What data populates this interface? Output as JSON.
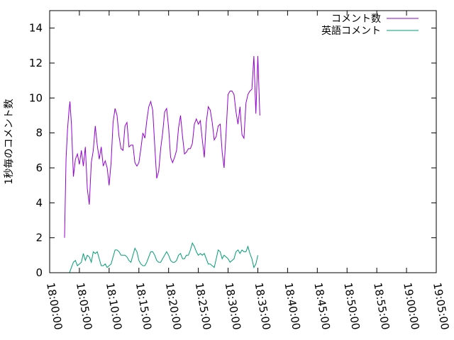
{
  "chart_data": {
    "type": "line",
    "ylabel": "1秒毎のコメント数",
    "xlabel": "",
    "ylim": [
      0,
      15
    ],
    "xlim": [
      "18:00:00",
      "19:05:00"
    ],
    "grid": false,
    "legend_position": "top-right",
    "y_ticks": [
      "0",
      "2",
      "4",
      "6",
      "8",
      "10",
      "12",
      "14"
    ],
    "x_ticks": [
      "18:00:00",
      "18:05:00",
      "18:10:00",
      "18:15:00",
      "18:20:00",
      "18:25:00",
      "18:30:00",
      "18:35:00",
      "18:40:00",
      "18:45:00",
      "18:50:00",
      "18:55:00",
      "19:00:00",
      "19:05:00"
    ],
    "series": [
      {
        "name": "コメント数",
        "color": "#9400d3",
        "points": [
          [
            "18:02:30",
            2.0
          ],
          [
            "18:02:45",
            6.5
          ],
          [
            "18:03:00",
            8.2
          ],
          [
            "18:03:15",
            9.3
          ],
          [
            "18:03:25",
            9.8
          ],
          [
            "18:03:40",
            8.5
          ],
          [
            "18:04:00",
            5.5
          ],
          [
            "18:04:20",
            6.5
          ],
          [
            "18:04:40",
            6.8
          ],
          [
            "18:05:00",
            6.2
          ],
          [
            "18:05:20",
            7.0
          ],
          [
            "18:05:40",
            6.1
          ],
          [
            "18:06:00",
            7.2
          ],
          [
            "18:06:20",
            4.8
          ],
          [
            "18:06:40",
            3.9
          ],
          [
            "18:07:00",
            6.3
          ],
          [
            "18:07:20",
            7.0
          ],
          [
            "18:07:40",
            8.4
          ],
          [
            "18:08:00",
            7.3
          ],
          [
            "18:08:20",
            6.5
          ],
          [
            "18:08:40",
            7.2
          ],
          [
            "18:09:00",
            6.1
          ],
          [
            "18:09:20",
            6.4
          ],
          [
            "18:09:40",
            6.0
          ],
          [
            "18:10:00",
            5.0
          ],
          [
            "18:10:20",
            6.3
          ],
          [
            "18:10:40",
            8.6
          ],
          [
            "18:11:00",
            9.4
          ],
          [
            "18:11:20",
            9.0
          ],
          [
            "18:11:40",
            7.8
          ],
          [
            "18:12:00",
            7.1
          ],
          [
            "18:12:20",
            7.0
          ],
          [
            "18:12:40",
            8.4
          ],
          [
            "18:13:00",
            8.6
          ],
          [
            "18:13:20",
            7.2
          ],
          [
            "18:13:40",
            7.3
          ],
          [
            "18:14:00",
            7.3
          ],
          [
            "18:14:20",
            6.3
          ],
          [
            "18:14:40",
            6.1
          ],
          [
            "18:15:00",
            6.3
          ],
          [
            "18:15:20",
            7.1
          ],
          [
            "18:15:40",
            8.0
          ],
          [
            "18:16:00",
            7.7
          ],
          [
            "18:16:20",
            8.7
          ],
          [
            "18:16:40",
            9.5
          ],
          [
            "18:17:00",
            9.8
          ],
          [
            "18:17:20",
            9.3
          ],
          [
            "18:17:40",
            7.3
          ],
          [
            "18:18:00",
            5.4
          ],
          [
            "18:18:20",
            5.8
          ],
          [
            "18:18:40",
            7.1
          ],
          [
            "18:19:00",
            8.0
          ],
          [
            "18:19:20",
            9.2
          ],
          [
            "18:19:40",
            9.4
          ],
          [
            "18:20:00",
            8.3
          ],
          [
            "18:20:20",
            6.6
          ],
          [
            "18:20:40",
            6.3
          ],
          [
            "18:21:00",
            6.6
          ],
          [
            "18:21:20",
            7.0
          ],
          [
            "18:21:40",
            8.3
          ],
          [
            "18:22:00",
            9.0
          ],
          [
            "18:22:20",
            7.8
          ],
          [
            "18:22:40",
            6.8
          ],
          [
            "18:23:00",
            6.9
          ],
          [
            "18:23:20",
            7.1
          ],
          [
            "18:23:40",
            7.1
          ],
          [
            "18:24:00",
            7.4
          ],
          [
            "18:24:20",
            8.5
          ],
          [
            "18:24:40",
            8.8
          ],
          [
            "18:25:00",
            8.5
          ],
          [
            "18:25:20",
            8.7
          ],
          [
            "18:25:40",
            7.6
          ],
          [
            "18:26:00",
            6.6
          ],
          [
            "18:26:20",
            8.6
          ],
          [
            "18:26:40",
            9.5
          ],
          [
            "18:27:00",
            9.3
          ],
          [
            "18:27:20",
            8.6
          ],
          [
            "18:27:40",
            7.6
          ],
          [
            "18:28:00",
            7.8
          ],
          [
            "18:28:20",
            8.4
          ],
          [
            "18:28:40",
            8.5
          ],
          [
            "18:29:00",
            6.9
          ],
          [
            "18:29:20",
            6.0
          ],
          [
            "18:29:40",
            8.0
          ],
          [
            "18:30:00",
            10.2
          ],
          [
            "18:30:20",
            10.4
          ],
          [
            "18:30:40",
            10.4
          ],
          [
            "18:31:00",
            10.2
          ],
          [
            "18:31:20",
            9.2
          ],
          [
            "18:31:40",
            8.5
          ],
          [
            "18:32:00",
            9.5
          ],
          [
            "18:32:20",
            7.9
          ],
          [
            "18:32:40",
            7.7
          ],
          [
            "18:33:00",
            9.7
          ],
          [
            "18:33:20",
            10.2
          ],
          [
            "18:33:40",
            10.4
          ],
          [
            "18:34:00",
            10.5
          ],
          [
            "18:34:20",
            12.4
          ],
          [
            "18:34:40",
            9.1
          ],
          [
            "18:35:00",
            12.4
          ],
          [
            "18:35:20",
            9.0
          ]
        ]
      },
      {
        "name": "英語コメント",
        "color": "#009e73",
        "points": [
          [
            "18:03:00",
            0.0
          ],
          [
            "18:03:20",
            0.0
          ],
          [
            "18:03:40",
            0.3
          ],
          [
            "18:04:00",
            0.6
          ],
          [
            "18:04:20",
            0.7
          ],
          [
            "18:04:40",
            0.4
          ],
          [
            "18:05:00",
            0.5
          ],
          [
            "18:05:20",
            0.6
          ],
          [
            "18:05:40",
            1.1
          ],
          [
            "18:06:00",
            0.7
          ],
          [
            "18:06:20",
            1.0
          ],
          [
            "18:06:40",
            0.9
          ],
          [
            "18:07:00",
            0.6
          ],
          [
            "18:07:20",
            1.2
          ],
          [
            "18:07:40",
            1.1
          ],
          [
            "18:08:00",
            1.2
          ],
          [
            "18:08:20",
            0.8
          ],
          [
            "18:08:40",
            0.4
          ],
          [
            "18:09:00",
            0.4
          ],
          [
            "18:09:20",
            0.5
          ],
          [
            "18:09:40",
            0.3
          ],
          [
            "18:10:00",
            0.4
          ],
          [
            "18:10:20",
            0.5
          ],
          [
            "18:10:40",
            0.9
          ],
          [
            "18:11:00",
            1.3
          ],
          [
            "18:11:20",
            1.3
          ],
          [
            "18:11:40",
            1.2
          ],
          [
            "18:12:00",
            1.0
          ],
          [
            "18:12:20",
            1.0
          ],
          [
            "18:12:40",
            1.0
          ],
          [
            "18:13:00",
            0.9
          ],
          [
            "18:13:20",
            0.7
          ],
          [
            "18:13:40",
            0.6
          ],
          [
            "18:14:00",
            1.0
          ],
          [
            "18:14:20",
            1.4
          ],
          [
            "18:14:40",
            1.2
          ],
          [
            "18:15:00",
            0.7
          ],
          [
            "18:15:20",
            0.5
          ],
          [
            "18:15:40",
            0.4
          ],
          [
            "18:16:00",
            0.4
          ],
          [
            "18:16:20",
            0.6
          ],
          [
            "18:16:40",
            0.9
          ],
          [
            "18:17:00",
            1.2
          ],
          [
            "18:17:20",
            1.2
          ],
          [
            "18:17:40",
            1.0
          ],
          [
            "18:18:00",
            0.7
          ],
          [
            "18:18:20",
            0.6
          ],
          [
            "18:18:40",
            0.6
          ],
          [
            "18:19:00",
            0.8
          ],
          [
            "18:19:20",
            1.0
          ],
          [
            "18:19:40",
            1.2
          ],
          [
            "18:20:00",
            1.0
          ],
          [
            "18:20:20",
            0.7
          ],
          [
            "18:20:40",
            0.6
          ],
          [
            "18:21:00",
            0.6
          ],
          [
            "18:21:20",
            0.7
          ],
          [
            "18:21:40",
            1.0
          ],
          [
            "18:22:00",
            1.1
          ],
          [
            "18:22:20",
            0.8
          ],
          [
            "18:22:40",
            0.8
          ],
          [
            "18:23:00",
            1.0
          ],
          [
            "18:23:20",
            1.0
          ],
          [
            "18:23:40",
            1.3
          ],
          [
            "18:24:00",
            1.7
          ],
          [
            "18:24:20",
            1.5
          ],
          [
            "18:24:40",
            1.2
          ],
          [
            "18:25:00",
            1.0
          ],
          [
            "18:25:20",
            1.1
          ],
          [
            "18:25:40",
            1.0
          ],
          [
            "18:26:00",
            1.1
          ],
          [
            "18:26:20",
            0.8
          ],
          [
            "18:26:40",
            0.5
          ],
          [
            "18:27:00",
            0.5
          ],
          [
            "18:27:20",
            0.4
          ],
          [
            "18:27:40",
            0.3
          ],
          [
            "18:28:00",
            0.8
          ],
          [
            "18:28:20",
            1.3
          ],
          [
            "18:28:40",
            1.2
          ],
          [
            "18:29:00",
            0.8
          ],
          [
            "18:29:20",
            1.0
          ],
          [
            "18:29:40",
            0.9
          ],
          [
            "18:30:00",
            0.8
          ],
          [
            "18:30:20",
            0.6
          ],
          [
            "18:30:40",
            0.7
          ],
          [
            "18:31:00",
            0.8
          ],
          [
            "18:31:20",
            1.2
          ],
          [
            "18:31:40",
            1.3
          ],
          [
            "18:32:00",
            1.1
          ],
          [
            "18:32:20",
            1.3
          ],
          [
            "18:32:40",
            1.2
          ],
          [
            "18:33:00",
            1.2
          ],
          [
            "18:33:20",
            1.5
          ],
          [
            "18:33:40",
            1.1
          ],
          [
            "18:34:00",
            0.8
          ],
          [
            "18:34:20",
            0.3
          ],
          [
            "18:34:40",
            0.5
          ],
          [
            "18:35:00",
            1.0
          ]
        ]
      }
    ]
  }
}
